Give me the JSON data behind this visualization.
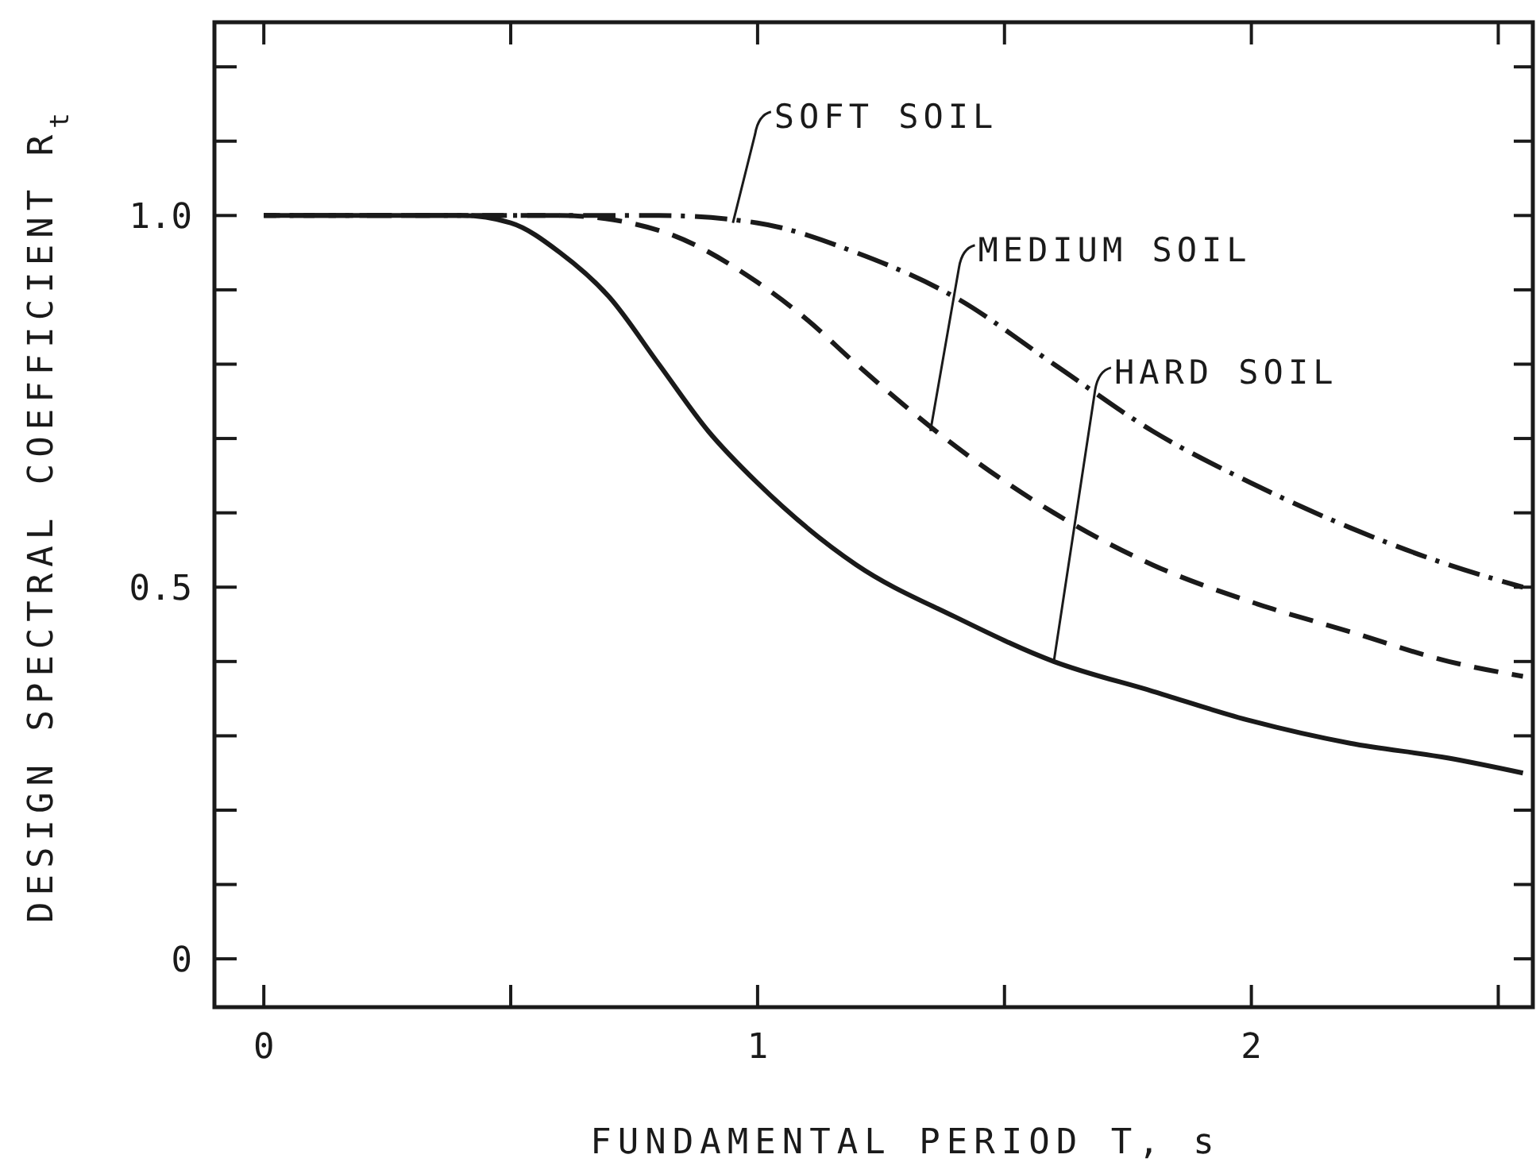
{
  "chart_data": {
    "type": "line",
    "xlabel": "FUNDAMENTAL PERIOD T, s",
    "ylabel": "DESIGN SPECTRAL COEFFICIENT R$_{t}$",
    "xlim": [
      -0.1,
      2.57
    ],
    "ylim": [
      -0.065,
      1.26
    ],
    "xticks": [
      0,
      {
        "value": 0.5,
        "label": null
      },
      1,
      {
        "value": 1.5,
        "label": null
      },
      2,
      {
        "value": 2.5,
        "label": null
      }
    ],
    "yticks": [
      {
        "value": 0,
        "label": "0"
      },
      {
        "value": 0.1,
        "label": null
      },
      {
        "value": 0.2,
        "label": null
      },
      {
        "value": 0.3,
        "label": null
      },
      {
        "value": 0.4,
        "label": null
      },
      {
        "value": 0.5,
        "label": "0.5"
      },
      {
        "value": 0.6,
        "label": null
      },
      {
        "value": 0.7,
        "label": null
      },
      {
        "value": 0.8,
        "label": null
      },
      {
        "value": 0.9,
        "label": null
      },
      {
        "value": 1,
        "label": "1.0"
      },
      {
        "value": 1.1,
        "label": null
      },
      {
        "value": 1.2,
        "label": null
      }
    ],
    "grid": false,
    "marker": "none",
    "series": [
      {
        "color": "#1a1a1a",
        "line_style": "solid",
        "x": [
          0,
          0.4,
          0.5,
          0.6,
          0.7,
          0.8,
          0.9,
          1.0,
          1.2,
          1.4,
          1.6,
          1.8,
          2.0,
          2.2,
          2.4,
          2.55
        ],
        "values": [
          1,
          1,
          0.99,
          0.95,
          0.89,
          0.8,
          0.71,
          0.64,
          0.53,
          0.46,
          0.4,
          0.36,
          0.32,
          0.29,
          0.27,
          0.25
        ]
      },
      {
        "color": "#1a1a1a",
        "line_style": "dashed",
        "x": [
          0,
          0.6,
          0.8,
          1.0,
          1.1,
          1.2,
          1.4,
          1.6,
          1.8,
          2.0,
          2.2,
          2.4,
          2.55
        ],
        "values": [
          1,
          1,
          0.98,
          0.91,
          0.86,
          0.8,
          0.69,
          0.6,
          0.53,
          0.48,
          0.44,
          0.4,
          0.38
        ]
      },
      {
        "color": "#1a1a1a",
        "line_style": "dashdot",
        "x": [
          0,
          0.8,
          1.0,
          1.2,
          1.4,
          1.6,
          1.8,
          2.0,
          2.2,
          2.4,
          2.55
        ],
        "values": [
          1,
          1,
          0.99,
          0.95,
          0.89,
          0.8,
          0.71,
          0.64,
          0.58,
          0.53,
          0.5
        ]
      }
    ],
    "annotations": [
      {
        "text": "SOFT SOIL",
        "x": 0.95,
        "y": 0.99
      },
      {
        "text": "MEDIUM SOIL",
        "x": 1.35,
        "y": 0.71
      },
      {
        "text": "HARD SOIL",
        "x": 1.6,
        "y": 0.4
      }
    ]
  }
}
